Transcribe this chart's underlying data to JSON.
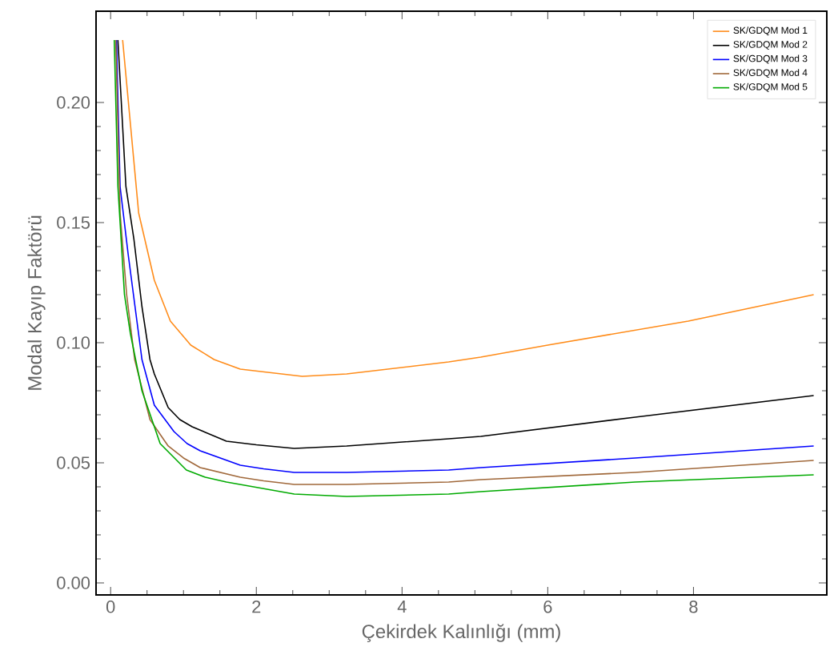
{
  "chart_data": {
    "type": "line",
    "xlabel": "Çekirdek Kalınlığı (mm)",
    "ylabel": "Modal Kayıp Faktörü",
    "xlim": [
      -0.2,
      9.83
    ],
    "ylim": [
      -0.005,
      0.238
    ],
    "xticks": [
      0,
      2,
      4,
      6,
      8
    ],
    "yticks": [
      {
        "value": 0,
        "label": "0.00"
      },
      {
        "value": 0.05,
        "label": "0.05"
      },
      {
        "value": 0.1,
        "label": "0.10"
      },
      {
        "value": 0.15,
        "label": "0.15"
      },
      {
        "value": 0.2,
        "label": "0.20"
      }
    ],
    "legend": "top right",
    "series": [
      {
        "name": "SK/GDQM Mod 1",
        "color": "#ff8c1a",
        "x": [
          0.165,
          0.385,
          0.6,
          0.82,
          1.1,
          1.42,
          1.78,
          2.63,
          3.24,
          4.64,
          5.08,
          6.0,
          7.93,
          9.65
        ],
        "values": [
          0.226,
          0.154,
          0.126,
          0.109,
          0.099,
          0.093,
          0.089,
          0.086,
          0.087,
          0.092,
          0.094,
          0.099,
          0.109,
          0.12
        ]
      },
      {
        "name": "SK/GDQM Mod 2",
        "color": "#000000",
        "x": [
          0.1,
          0.21,
          0.32,
          0.43,
          0.54,
          0.6,
          0.79,
          0.95,
          1.12,
          1.59,
          2.0,
          2.52,
          3.24,
          4.64,
          5.08,
          7.2,
          9.65
        ],
        "values": [
          0.226,
          0.165,
          0.143,
          0.115,
          0.093,
          0.087,
          0.073,
          0.068,
          0.065,
          0.059,
          0.0575,
          0.056,
          0.057,
          0.06,
          0.061,
          0.069,
          0.078
        ]
      },
      {
        "name": "SK/GDQM Mod 3",
        "color": "#0000ff",
        "x": [
          0.08,
          0.13,
          0.24,
          0.43,
          0.6,
          0.87,
          1.05,
          1.23,
          1.78,
          2.1,
          2.52,
          3.24,
          4.64,
          5.08,
          7.2,
          9.65
        ],
        "values": [
          0.226,
          0.165,
          0.137,
          0.093,
          0.074,
          0.063,
          0.058,
          0.055,
          0.049,
          0.0475,
          0.046,
          0.046,
          0.047,
          0.048,
          0.052,
          0.057
        ]
      },
      {
        "name": "SK/GDQM Mod 4",
        "color": "#a0683a",
        "x": [
          0.07,
          0.13,
          0.22,
          0.33,
          0.54,
          0.79,
          1.0,
          1.23,
          1.78,
          2.1,
          2.52,
          3.24,
          4.64,
          5.08,
          7.2,
          9.65
        ],
        "values": [
          0.226,
          0.154,
          0.12,
          0.093,
          0.068,
          0.057,
          0.052,
          0.048,
          0.044,
          0.0425,
          0.041,
          0.041,
          0.042,
          0.043,
          0.046,
          0.051
        ]
      },
      {
        "name": "SK/GDQM Mod 5",
        "color": "#00aa00",
        "x": [
          0.05,
          0.1,
          0.19,
          0.27,
          0.43,
          0.68,
          1.04,
          1.3,
          1.59,
          2.52,
          3.24,
          4.64,
          5.08,
          7.2,
          9.65
        ],
        "values": [
          0.226,
          0.165,
          0.12,
          0.104,
          0.08,
          0.058,
          0.047,
          0.044,
          0.042,
          0.037,
          0.036,
          0.037,
          0.038,
          0.042,
          0.045
        ]
      }
    ]
  }
}
